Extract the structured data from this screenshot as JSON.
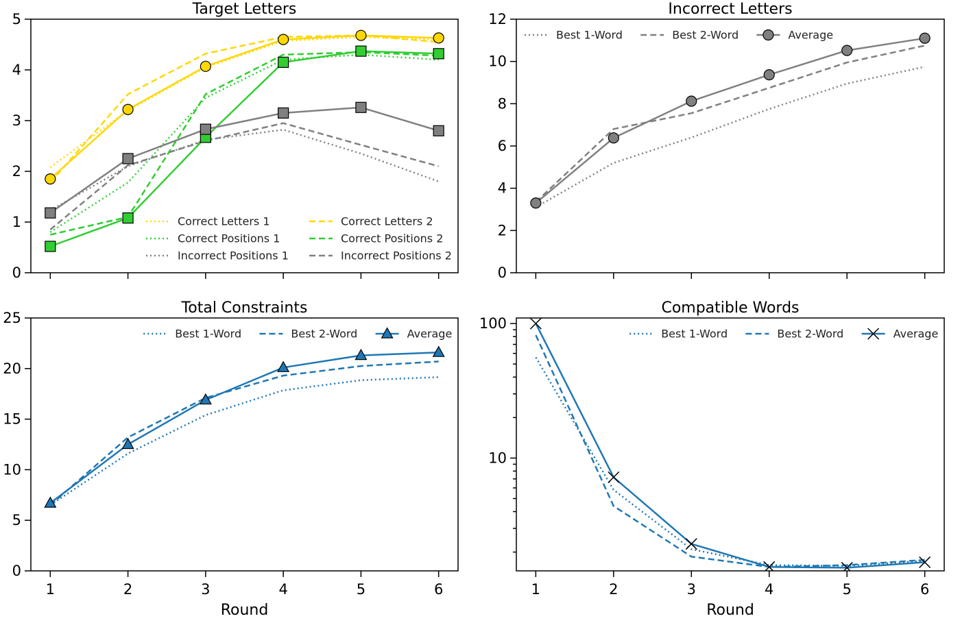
{
  "chart_data": [
    {
      "id": "target",
      "type": "line",
      "title": "Target Letters",
      "xlabel": "",
      "ylabel": "",
      "yscale": "linear",
      "ylim": [
        0,
        5
      ],
      "yticks": [
        0,
        1,
        2,
        3,
        4,
        5
      ],
      "x": [
        1,
        2,
        3,
        4,
        5,
        6
      ],
      "xticks": [
        1,
        2,
        3,
        4,
        5,
        6
      ],
      "show_xticklabels": false,
      "legend": {
        "placement": "lower-right",
        "columns": 2
      },
      "series": [
        {
          "name": "Correct Letters 1",
          "style": "dotted",
          "color": "#ffd700",
          "marker": "none",
          "in_legend": true,
          "values": [
            2.08,
            3.2,
            4.05,
            4.57,
            4.65,
            4.6
          ]
        },
        {
          "name": "Correct Positions 1",
          "style": "dotted",
          "color": "#32cd32",
          "marker": "none",
          "in_legend": true,
          "values": [
            0.8,
            1.78,
            3.45,
            4.2,
            4.3,
            4.2
          ]
        },
        {
          "name": "Incorrect Positions 1",
          "style": "dotted",
          "color": "#808080",
          "marker": "none",
          "in_legend": true,
          "values": [
            1.23,
            2.1,
            2.62,
            2.82,
            2.35,
            1.8
          ]
        },
        {
          "name": "Correct Letters 2",
          "style": "dashed",
          "color": "#ffd700",
          "marker": "none",
          "in_legend": true,
          "values": [
            1.78,
            3.52,
            4.32,
            4.65,
            4.68,
            4.55
          ]
        },
        {
          "name": "Correct Positions 2",
          "style": "dashed",
          "color": "#32cd32",
          "marker": "none",
          "in_legend": true,
          "values": [
            0.75,
            1.1,
            3.52,
            4.3,
            4.35,
            4.28
          ]
        },
        {
          "name": "Incorrect Positions 2",
          "style": "dashed",
          "color": "#808080",
          "marker": "none",
          "in_legend": true,
          "values": [
            0.85,
            2.12,
            2.6,
            2.95,
            2.52,
            2.1
          ]
        },
        {
          "name": "Correct Letters (average)",
          "style": "solid",
          "color": "#ffd700",
          "marker": "circle",
          "in_legend": false,
          "values": [
            1.85,
            3.22,
            4.07,
            4.6,
            4.68,
            4.63
          ]
        },
        {
          "name": "Correct Positions (average)",
          "style": "solid",
          "color": "#32cd32",
          "marker": "square",
          "in_legend": false,
          "values": [
            0.52,
            1.08,
            2.67,
            4.15,
            4.37,
            4.32
          ]
        },
        {
          "name": "Incorrect Positions (average)",
          "style": "solid",
          "color": "#808080",
          "marker": "square",
          "in_legend": false,
          "values": [
            1.18,
            2.25,
            2.83,
            3.15,
            3.26,
            2.8
          ]
        }
      ]
    },
    {
      "id": "incorrect",
      "type": "line",
      "title": "Incorrect Letters",
      "xlabel": "",
      "ylabel": "",
      "yscale": "linear",
      "ylim": [
        0,
        12
      ],
      "yticks": [
        0,
        2,
        4,
        6,
        8,
        10,
        12
      ],
      "x": [
        1,
        2,
        3,
        4,
        5,
        6
      ],
      "xticks": [
        1,
        2,
        3,
        4,
        5,
        6
      ],
      "show_xticklabels": false,
      "legend": {
        "placement": "top",
        "columns": 3
      },
      "series": [
        {
          "name": "Best 1-Word",
          "style": "dotted",
          "color": "#808080",
          "marker": "none",
          "in_legend": true,
          "values": [
            3.1,
            5.2,
            6.4,
            7.75,
            8.95,
            9.75
          ]
        },
        {
          "name": "Best 2-Word",
          "style": "dashed",
          "color": "#808080",
          "marker": "none",
          "in_legend": true,
          "values": [
            3.35,
            6.8,
            7.55,
            8.75,
            9.95,
            10.75
          ]
        },
        {
          "name": "Average",
          "style": "solid",
          "color": "#808080",
          "marker": "circle",
          "in_legend": true,
          "values": [
            3.3,
            6.38,
            8.12,
            9.37,
            10.52,
            11.1
          ]
        }
      ]
    },
    {
      "id": "total",
      "type": "line",
      "title": "Total Constraints",
      "xlabel": "Round",
      "ylabel": "",
      "yscale": "linear",
      "ylim": [
        0,
        25
      ],
      "yticks": [
        0,
        5,
        10,
        15,
        20,
        25
      ],
      "x": [
        1,
        2,
        3,
        4,
        5,
        6
      ],
      "xticks": [
        1,
        2,
        3,
        4,
        5,
        6
      ],
      "show_xticklabels": true,
      "legend": {
        "placement": "top-right",
        "columns": 3
      },
      "series": [
        {
          "name": "Best 1-Word",
          "style": "dotted",
          "color": "#1f77b4",
          "marker": "none",
          "in_legend": true,
          "values": [
            6.5,
            11.6,
            15.4,
            17.85,
            18.85,
            19.15
          ]
        },
        {
          "name": "Best 2-Word",
          "style": "dashed",
          "color": "#1f77b4",
          "marker": "none",
          "in_legend": true,
          "values": [
            6.5,
            13.2,
            17.1,
            19.3,
            20.25,
            20.7
          ]
        },
        {
          "name": "Average",
          "style": "solid",
          "color": "#1f77b4",
          "marker": "triangle",
          "in_legend": true,
          "values": [
            6.7,
            12.5,
            16.9,
            20.1,
            21.3,
            21.6
          ]
        }
      ]
    },
    {
      "id": "compatible",
      "type": "line",
      "title": "Compatible Words",
      "xlabel": "Round",
      "ylabel": "",
      "yscale": "log",
      "ylim": [
        1.45,
        110
      ],
      "yticks": [
        10,
        100
      ],
      "x": [
        1,
        2,
        3,
        4,
        5,
        6
      ],
      "xticks": [
        1,
        2,
        3,
        4,
        5,
        6
      ],
      "show_xticklabels": true,
      "legend": {
        "placement": "top-right",
        "columns": 3
      },
      "series": [
        {
          "name": "Best 1-Word",
          "style": "dotted",
          "color": "#1f77b4",
          "marker": "none",
          "in_legend": true,
          "values": [
            56,
            5.8,
            2.1,
            1.6,
            1.58,
            1.72
          ]
        },
        {
          "name": "Best 2-Word",
          "style": "dashed",
          "color": "#1f77b4",
          "marker": "none",
          "in_legend": true,
          "values": [
            82,
            4.4,
            1.85,
            1.55,
            1.6,
            1.75
          ]
        },
        {
          "name": "Average",
          "style": "solid",
          "color": "#1f77b4",
          "marker": "x",
          "in_legend": true,
          "values": [
            100,
            7.2,
            2.3,
            1.55,
            1.53,
            1.68
          ]
        }
      ]
    }
  ]
}
